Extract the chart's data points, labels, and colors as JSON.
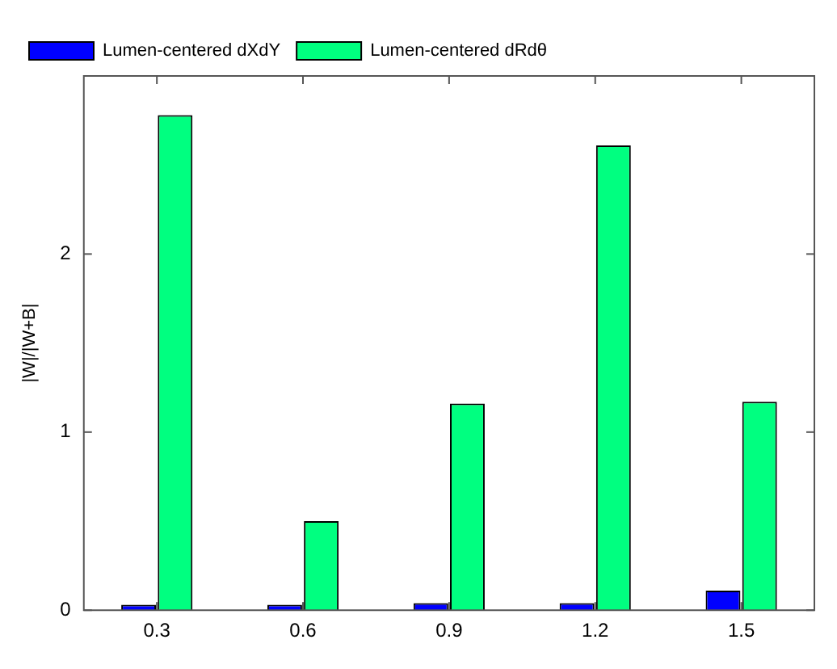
{
  "chart_data": {
    "type": "bar",
    "ylabel": "|W|/|W+B|",
    "categories": [
      "0.3",
      "0.6",
      "0.9",
      "1.2",
      "1.5"
    ],
    "series": [
      {
        "name": "Lumen-centered dXdY",
        "color": "#0000ff",
        "values": [
          0.03,
          0.03,
          0.04,
          0.04,
          0.11
        ]
      },
      {
        "name": "Lumen-centered dRdθ",
        "color": "#00ff80",
        "values": [
          2.78,
          0.5,
          1.16,
          2.61,
          1.17
        ]
      }
    ],
    "ylim": [
      0,
      3
    ],
    "yticks": [
      0,
      1,
      2
    ],
    "grid": false,
    "legend": "top"
  }
}
